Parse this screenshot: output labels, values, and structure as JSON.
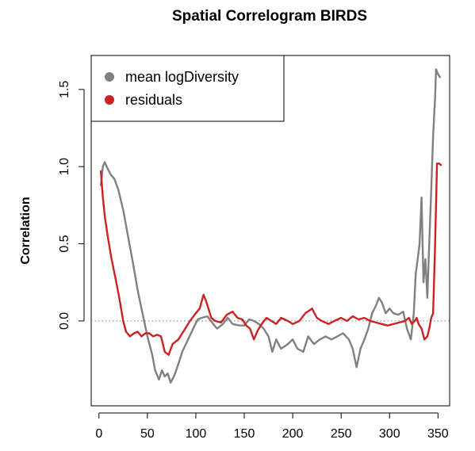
{
  "chart_data": {
    "type": "line",
    "title": "Spatial Correlogram BIRDS",
    "xlabel": "",
    "ylabel": "Correlation",
    "xlim": [
      -8,
      362
    ],
    "ylim": [
      -0.55,
      1.72
    ],
    "x_ticks": [
      0,
      50,
      100,
      150,
      200,
      250,
      300,
      350
    ],
    "y_ticks": [
      0.0,
      0.5,
      1.0,
      1.5
    ],
    "y_tick_labels": [
      "0.0",
      "0.5",
      "1.0",
      "1.5"
    ],
    "reference_line": {
      "y": 0,
      "style": "dotted",
      "color": "#808080"
    },
    "legend": {
      "placement": "top-left",
      "entries": [
        {
          "label": "mean logDiversity",
          "color": "#808080"
        },
        {
          "label": "residuals",
          "color": "#cc2222"
        }
      ]
    },
    "series": [
      {
        "name": "mean logDiversity",
        "color": "#808080",
        "points": [
          [
            2,
            0.88
          ],
          [
            4,
            1.0
          ],
          [
            6,
            1.03
          ],
          [
            8,
            1.0
          ],
          [
            12,
            0.95
          ],
          [
            16,
            0.92
          ],
          [
            20,
            0.85
          ],
          [
            25,
            0.72
          ],
          [
            30,
            0.55
          ],
          [
            35,
            0.38
          ],
          [
            40,
            0.2
          ],
          [
            45,
            0.05
          ],
          [
            50,
            -0.1
          ],
          [
            55,
            -0.22
          ],
          [
            58,
            -0.32
          ],
          [
            62,
            -0.38
          ],
          [
            65,
            -0.32
          ],
          [
            68,
            -0.36
          ],
          [
            71,
            -0.34
          ],
          [
            74,
            -0.4
          ],
          [
            78,
            -0.35
          ],
          [
            82,
            -0.28
          ],
          [
            86,
            -0.2
          ],
          [
            92,
            -0.12
          ],
          [
            98,
            -0.04
          ],
          [
            102,
            0.01
          ],
          [
            106,
            0.02
          ],
          [
            112,
            0.03
          ],
          [
            118,
            -0.02
          ],
          [
            122,
            -0.05
          ],
          [
            128,
            -0.02
          ],
          [
            133,
            0.02
          ],
          [
            138,
            -0.02
          ],
          [
            145,
            -0.03
          ],
          [
            150,
            -0.03
          ],
          [
            155,
            0.01
          ],
          [
            160,
            0.0
          ],
          [
            165,
            -0.02
          ],
          [
            170,
            -0.05
          ],
          [
            175,
            -0.1
          ],
          [
            179,
            -0.2
          ],
          [
            183,
            -0.12
          ],
          [
            188,
            -0.18
          ],
          [
            195,
            -0.15
          ],
          [
            200,
            -0.12
          ],
          [
            205,
            -0.18
          ],
          [
            211,
            -0.2
          ],
          [
            216,
            -0.1
          ],
          [
            222,
            -0.15
          ],
          [
            228,
            -0.12
          ],
          [
            234,
            -0.1
          ],
          [
            240,
            -0.12
          ],
          [
            246,
            -0.1
          ],
          [
            252,
            -0.08
          ],
          [
            258,
            -0.12
          ],
          [
            262,
            -0.18
          ],
          [
            266,
            -0.3
          ],
          [
            270,
            -0.18
          ],
          [
            274,
            -0.12
          ],
          [
            278,
            -0.05
          ],
          [
            282,
            0.05
          ],
          [
            286,
            0.1
          ],
          [
            289,
            0.15
          ],
          [
            292,
            0.12
          ],
          [
            296,
            0.05
          ],
          [
            300,
            0.08
          ],
          [
            304,
            0.05
          ],
          [
            309,
            0.04
          ],
          [
            314,
            0.06
          ],
          [
            318,
            -0.05
          ],
          [
            322,
            -0.12
          ],
          [
            325,
            0.05
          ],
          [
            327,
            0.3
          ],
          [
            329,
            0.4
          ],
          [
            331,
            0.5
          ],
          [
            333,
            0.8
          ],
          [
            335,
            0.25
          ],
          [
            337,
            0.4
          ],
          [
            339,
            0.15
          ],
          [
            341,
            0.5
          ],
          [
            343,
            0.85
          ],
          [
            345,
            1.2
          ],
          [
            347,
            1.45
          ],
          [
            348,
            1.63
          ],
          [
            350,
            1.6
          ],
          [
            352,
            1.58
          ]
        ]
      },
      {
        "name": "residuals",
        "color": "#cc2222",
        "points": [
          [
            2,
            0.97
          ],
          [
            4,
            0.8
          ],
          [
            6,
            0.68
          ],
          [
            9,
            0.55
          ],
          [
            13,
            0.4
          ],
          [
            17,
            0.28
          ],
          [
            21,
            0.15
          ],
          [
            25,
            0.0
          ],
          [
            28,
            -0.07
          ],
          [
            32,
            -0.1
          ],
          [
            36,
            -0.08
          ],
          [
            40,
            -0.07
          ],
          [
            44,
            -0.1
          ],
          [
            48,
            -0.08
          ],
          [
            52,
            -0.08
          ],
          [
            56,
            -0.1
          ],
          [
            60,
            -0.09
          ],
          [
            64,
            -0.1
          ],
          [
            68,
            -0.2
          ],
          [
            72,
            -0.22
          ],
          [
            76,
            -0.15
          ],
          [
            82,
            -0.12
          ],
          [
            88,
            -0.06
          ],
          [
            94,
            0.0
          ],
          [
            100,
            0.05
          ],
          [
            104,
            0.08
          ],
          [
            108,
            0.17
          ],
          [
            111,
            0.12
          ],
          [
            116,
            0.02
          ],
          [
            120,
            0.0
          ],
          [
            126,
            -0.01
          ],
          [
            132,
            0.04
          ],
          [
            138,
            0.06
          ],
          [
            143,
            0.02
          ],
          [
            148,
            0.01
          ],
          [
            152,
            -0.03
          ],
          [
            156,
            -0.05
          ],
          [
            160,
            -0.12
          ],
          [
            164,
            -0.06
          ],
          [
            168,
            -0.02
          ],
          [
            173,
            0.02
          ],
          [
            178,
            0.0
          ],
          [
            183,
            -0.02
          ],
          [
            188,
            0.02
          ],
          [
            195,
            0.0
          ],
          [
            200,
            -0.02
          ],
          [
            207,
            0.0
          ],
          [
            213,
            0.05
          ],
          [
            220,
            0.08
          ],
          [
            225,
            0.02
          ],
          [
            230,
            0.0
          ],
          [
            237,
            -0.02
          ],
          [
            243,
            0.0
          ],
          [
            250,
            0.02
          ],
          [
            256,
            0.0
          ],
          [
            262,
            0.03
          ],
          [
            268,
            0.01
          ],
          [
            274,
            0.02
          ],
          [
            280,
            0.0
          ],
          [
            286,
            -0.01
          ],
          [
            292,
            -0.02
          ],
          [
            298,
            -0.03
          ],
          [
            304,
            -0.02
          ],
          [
            310,
            -0.01
          ],
          [
            316,
            0.0
          ],
          [
            320,
            0.02
          ],
          [
            323,
            -0.02
          ],
          [
            326,
            0.0
          ],
          [
            328,
            0.02
          ],
          [
            330,
            -0.02
          ],
          [
            333,
            -0.05
          ],
          [
            336,
            -0.12
          ],
          [
            339,
            -0.1
          ],
          [
            341,
            -0.05
          ],
          [
            343,
            0.02
          ],
          [
            345,
            0.05
          ],
          [
            347,
            0.5
          ],
          [
            349,
            1.02
          ],
          [
            351,
            1.02
          ],
          [
            353,
            1.01
          ]
        ]
      }
    ]
  }
}
